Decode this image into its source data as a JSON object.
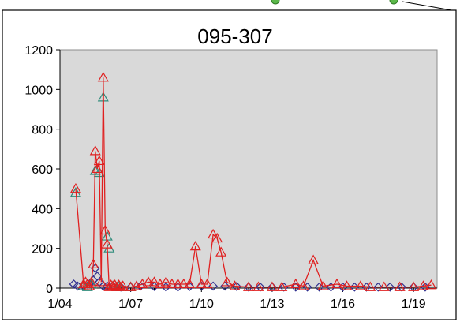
{
  "chart_data": {
    "type": "scatter",
    "title": "095-307",
    "xlabel": "",
    "ylabel": "",
    "ylim": [
      0,
      1200
    ],
    "xlim": [
      "2004-01-01",
      "2020-01-01"
    ],
    "y_ticks": [
      "0",
      "200",
      "400",
      "600",
      "800",
      "1000",
      "1200"
    ],
    "x_ticks": [
      {
        "label": "1/04",
        "date": "2004-01-01"
      },
      {
        "label": "1/07",
        "date": "2007-01-01"
      },
      {
        "label": "1/10",
        "date": "2010-01-01"
      },
      {
        "label": "1/13",
        "date": "2013-01-01"
      },
      {
        "label": "1/16",
        "date": "2016-01-01"
      },
      {
        "label": "1/19",
        "date": "2019-01-01"
      }
    ],
    "grid": false,
    "legend": "none",
    "plot_background": "#d9d9d9",
    "series": [
      {
        "color": "#2f2f8f",
        "marker": "diamond",
        "line": false,
        "points": [
          [
            "2004-08-01",
            20
          ],
          [
            "2004-10-01",
            10
          ],
          [
            "2005-01-01",
            10
          ],
          [
            "2005-04-01",
            20
          ],
          [
            "2005-06-01",
            40
          ],
          [
            "2005-07-01",
            100
          ],
          [
            "2005-08-01",
            60
          ],
          [
            "2005-09-01",
            30
          ],
          [
            "2005-11-01",
            10
          ],
          [
            "2006-01-01",
            10
          ],
          [
            "2006-04-01",
            10
          ],
          [
            "2006-08-01",
            5
          ],
          [
            "2007-01-01",
            5
          ],
          [
            "2007-06-01",
            10
          ],
          [
            "2008-01-01",
            8
          ],
          [
            "2008-07-01",
            5
          ],
          [
            "2009-01-01",
            5
          ],
          [
            "2009-07-01",
            8
          ],
          [
            "2010-01-01",
            10
          ],
          [
            "2010-07-01",
            10
          ],
          [
            "2011-01-01",
            10
          ],
          [
            "2011-07-01",
            8
          ],
          [
            "2012-01-01",
            5
          ],
          [
            "2012-07-01",
            5
          ],
          [
            "2013-01-01",
            5
          ],
          [
            "2013-07-01",
            5
          ],
          [
            "2014-01-01",
            5
          ],
          [
            "2014-07-01",
            5
          ],
          [
            "2015-01-01",
            5
          ],
          [
            "2015-07-01",
            5
          ],
          [
            "2016-01-01",
            5
          ],
          [
            "2016-07-01",
            5
          ],
          [
            "2017-01-01",
            5
          ],
          [
            "2017-07-01",
            5
          ],
          [
            "2018-01-01",
            5
          ],
          [
            "2018-07-01",
            5
          ],
          [
            "2019-01-01",
            5
          ],
          [
            "2019-07-01",
            5
          ]
        ]
      },
      {
        "color": "#2e8b7a",
        "marker": "triangle",
        "line": false,
        "points": [
          [
            "2004-09-01",
            480
          ],
          [
            "2005-01-01",
            10
          ],
          [
            "2005-03-01",
            5
          ],
          [
            "2005-05-01",
            20
          ],
          [
            "2005-07-01",
            590
          ],
          [
            "2005-09-01",
            580
          ],
          [
            "2005-11-01",
            960
          ],
          [
            "2006-01-01",
            260
          ],
          [
            "2006-02-01",
            200
          ],
          [
            "2006-04-01",
            10
          ],
          [
            "2006-07-01",
            5
          ],
          [
            "2007-01-01",
            5
          ]
        ]
      },
      {
        "color": "#e02020",
        "marker": "triangle",
        "line": true,
        "points": [
          [
            "2004-09-01",
            500
          ],
          [
            "2005-01-01",
            20
          ],
          [
            "2005-02-01",
            30
          ],
          [
            "2005-03-01",
            20
          ],
          [
            "2005-04-01",
            10
          ],
          [
            "2005-05-01",
            30
          ],
          [
            "2005-06-01",
            120
          ],
          [
            "2005-07-01",
            690
          ],
          [
            "2005-08-01",
            600
          ],
          [
            "2005-09-01",
            640
          ],
          [
            "2005-10-01",
            30
          ],
          [
            "2005-11-01",
            1060
          ],
          [
            "2005-12-01",
            290
          ],
          [
            "2006-01-01",
            220
          ],
          [
            "2006-02-01",
            5
          ],
          [
            "2006-03-01",
            15
          ],
          [
            "2006-04-01",
            10
          ],
          [
            "2006-05-01",
            15
          ],
          [
            "2006-06-01",
            5
          ],
          [
            "2006-07-01",
            15
          ],
          [
            "2006-08-01",
            5
          ],
          [
            "2006-09-01",
            10
          ],
          [
            "2007-01-01",
            5
          ],
          [
            "2007-04-01",
            10
          ],
          [
            "2007-07-01",
            20
          ],
          [
            "2007-10-01",
            30
          ],
          [
            "2008-01-01",
            30
          ],
          [
            "2008-04-01",
            20
          ],
          [
            "2008-07-01",
            30
          ],
          [
            "2008-10-01",
            20
          ],
          [
            "2009-01-01",
            20
          ],
          [
            "2009-04-01",
            20
          ],
          [
            "2009-07-01",
            20
          ],
          [
            "2009-10-01",
            210
          ],
          [
            "2010-01-01",
            20
          ],
          [
            "2010-04-01",
            20
          ],
          [
            "2010-07-01",
            270
          ],
          [
            "2010-09-01",
            250
          ],
          [
            "2010-11-01",
            180
          ],
          [
            "2011-02-01",
            30
          ],
          [
            "2011-06-01",
            10
          ],
          [
            "2012-01-01",
            5
          ],
          [
            "2012-06-01",
            5
          ],
          [
            "2013-01-01",
            5
          ],
          [
            "2013-06-01",
            5
          ],
          [
            "2014-01-01",
            20
          ],
          [
            "2014-05-01",
            10
          ],
          [
            "2014-10-01",
            140
          ],
          [
            "2015-03-01",
            10
          ],
          [
            "2015-10-01",
            20
          ],
          [
            "2016-03-01",
            10
          ],
          [
            "2016-10-01",
            10
          ],
          [
            "2017-03-01",
            5
          ],
          [
            "2017-10-01",
            5
          ],
          [
            "2018-06-01",
            5
          ],
          [
            "2019-01-01",
            5
          ],
          [
            "2019-06-01",
            10
          ],
          [
            "2019-10-01",
            15
          ]
        ]
      }
    ]
  }
}
